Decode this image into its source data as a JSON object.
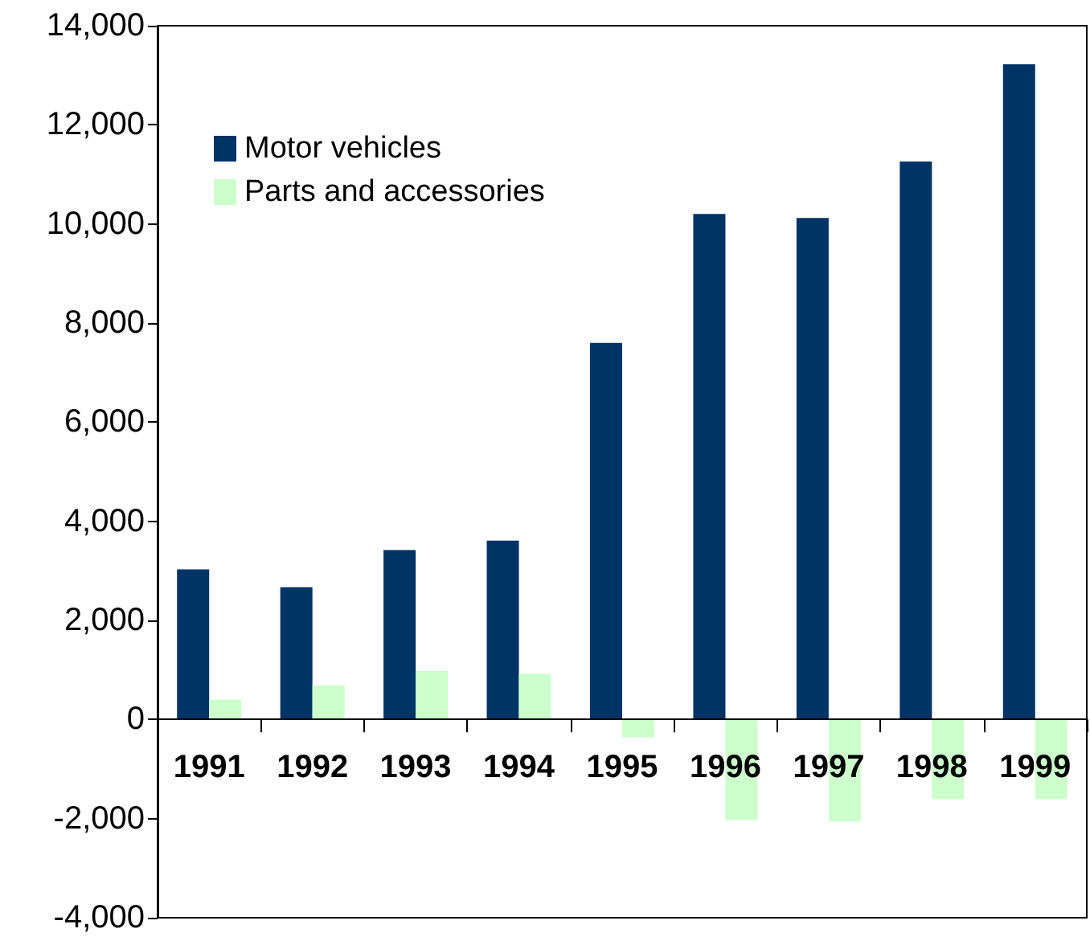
{
  "chart_data": {
    "type": "bar",
    "categories": [
      "1991",
      "1992",
      "1993",
      "1994",
      "1995",
      "1996",
      "1997",
      "1998",
      "1999"
    ],
    "series": [
      {
        "name": "Motor vehicles",
        "color": "#003366",
        "values": [
          3030,
          2670,
          3420,
          3610,
          7600,
          10200,
          10120,
          11260,
          13220
        ]
      },
      {
        "name": "Parts and accessories",
        "color": "#ccffcc",
        "values": [
          400,
          690,
          980,
          920,
          -360,
          -2030,
          -2060,
          -1610,
          -1610
        ]
      }
    ],
    "ylim": [
      -4000,
      14000
    ],
    "yticks": [
      {
        "value": -4000,
        "label": "-4,000"
      },
      {
        "value": -2000,
        "label": "-2,000"
      },
      0,
      {
        "value": 2000,
        "label": "2,000"
      },
      {
        "value": 4000,
        "label": "4,000"
      },
      {
        "value": 6000,
        "label": "6,000"
      },
      {
        "value": 8000,
        "label": "8,000"
      },
      {
        "value": 10000,
        "label": "10,000"
      },
      {
        "value": 12000,
        "label": "12,000"
      },
      {
        "value": 14000,
        "label": "14,000"
      }
    ],
    "legend": "top left"
  }
}
